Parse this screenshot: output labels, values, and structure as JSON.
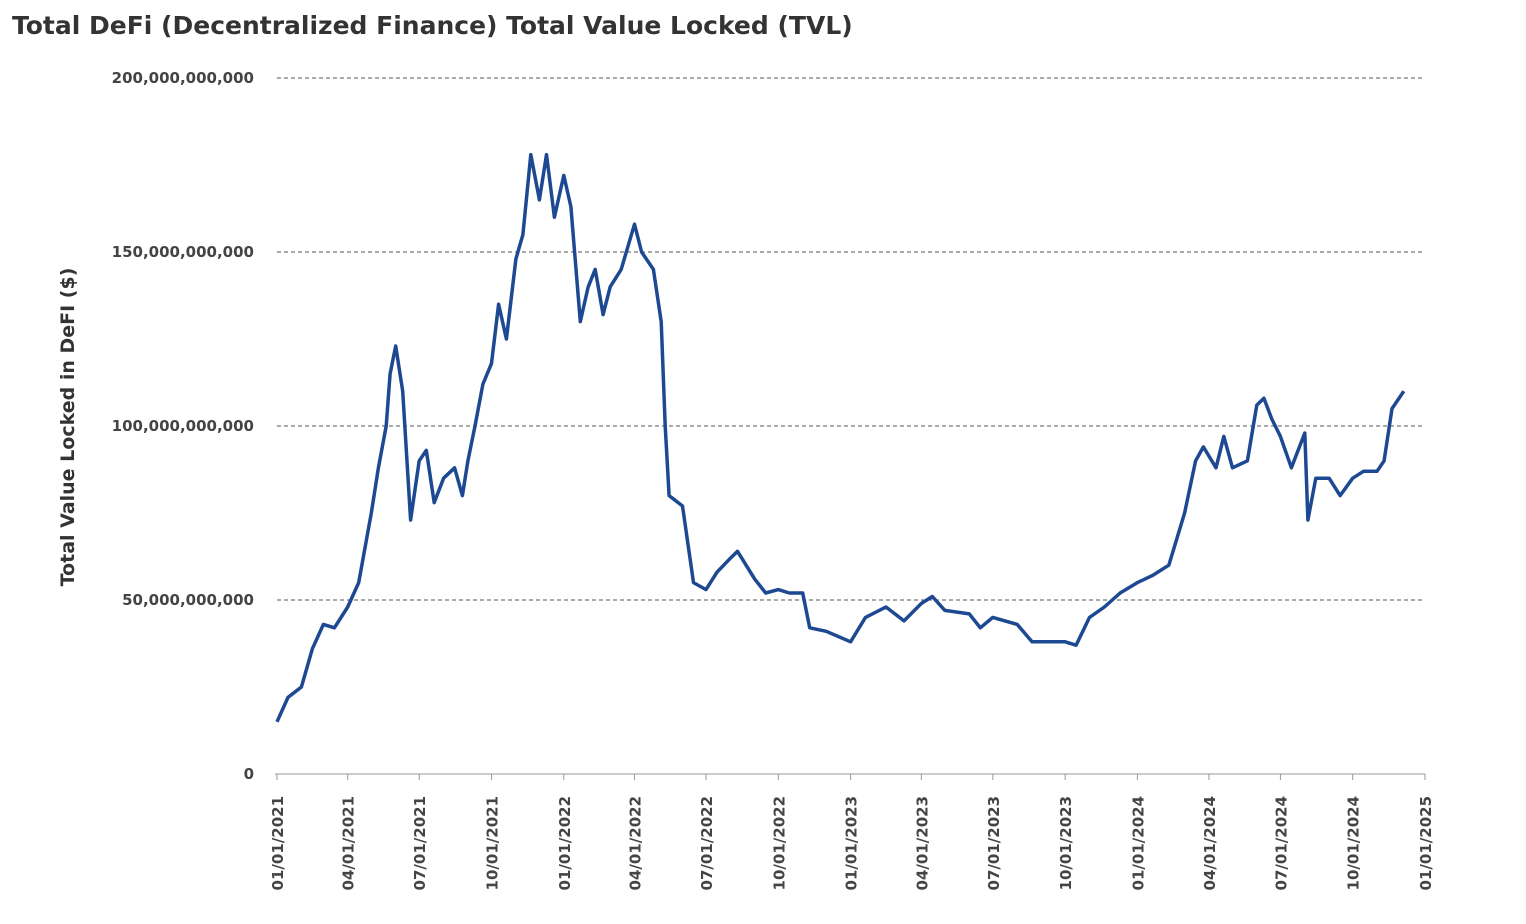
{
  "chart_data": {
    "type": "line",
    "title": "Total DeFi (Decentralized Finance) Total Value Locked (TVL)",
    "y_label": "Total Value Locked in DeFI ($)",
    "x": [
      "2021-01-01",
      "2021-01-15",
      "2021-02-01",
      "2021-02-15",
      "2021-03-01",
      "2021-03-15",
      "2021-04-01",
      "2021-04-15",
      "2021-05-01",
      "2021-05-10",
      "2021-05-20",
      "2021-05-25",
      "2021-06-01",
      "2021-06-10",
      "2021-06-20",
      "2021-07-01",
      "2021-07-10",
      "2021-07-20",
      "2021-08-01",
      "2021-08-15",
      "2021-08-25",
      "2021-09-01",
      "2021-09-10",
      "2021-09-20",
      "2021-10-01",
      "2021-10-10",
      "2021-10-20",
      "2021-11-01",
      "2021-11-10",
      "2021-11-20",
      "2021-12-01",
      "2021-12-10",
      "2021-12-20",
      "2022-01-01",
      "2022-01-10",
      "2022-01-22",
      "2022-02-01",
      "2022-02-10",
      "2022-02-20",
      "2022-03-01",
      "2022-03-15",
      "2022-04-01",
      "2022-04-10",
      "2022-04-25",
      "2022-05-05",
      "2022-05-10",
      "2022-05-15",
      "2022-06-01",
      "2022-06-15",
      "2022-07-01",
      "2022-07-15",
      "2022-08-01",
      "2022-08-10",
      "2022-09-01",
      "2022-09-15",
      "2022-10-01",
      "2022-10-15",
      "2022-11-01",
      "2022-11-10",
      "2022-12-01",
      "2023-01-01",
      "2023-01-20",
      "2023-02-15",
      "2023-03-10",
      "2023-04-01",
      "2023-04-15",
      "2023-05-01",
      "2023-06-01",
      "2023-06-15",
      "2023-07-01",
      "2023-08-01",
      "2023-08-20",
      "2023-09-15",
      "2023-10-01",
      "2023-10-15",
      "2023-11-01",
      "2023-11-20",
      "2023-12-10",
      "2024-01-01",
      "2024-01-20",
      "2024-02-10",
      "2024-03-01",
      "2024-03-15",
      "2024-03-25",
      "2024-04-10",
      "2024-04-20",
      "2024-05-01",
      "2024-05-20",
      "2024-06-01",
      "2024-06-10",
      "2024-06-20",
      "2024-07-01",
      "2024-07-15",
      "2024-08-01",
      "2024-08-05",
      "2024-08-15",
      "2024-09-01",
      "2024-09-15",
      "2024-10-01",
      "2024-10-15",
      "2024-11-01",
      "2024-11-10",
      "2024-11-20",
      "2024-12-05"
    ],
    "series": [
      {
        "name": "Total Value Locked",
        "color": "#1d4892",
        "values": [
          15000000000,
          22000000000,
          25000000000,
          36000000000,
          43000000000,
          42000000000,
          48000000000,
          55000000000,
          75000000000,
          88000000000,
          100000000000,
          115000000000,
          123000000000,
          110000000000,
          73000000000,
          90000000000,
          93000000000,
          78000000000,
          85000000000,
          88000000000,
          80000000000,
          90000000000,
          100000000000,
          112000000000,
          118000000000,
          135000000000,
          125000000000,
          148000000000,
          155000000000,
          178000000000,
          165000000000,
          178000000000,
          160000000000,
          172000000000,
          163000000000,
          130000000000,
          140000000000,
          145000000000,
          132000000000,
          140000000000,
          145000000000,
          158000000000,
          150000000000,
          145000000000,
          130000000000,
          100000000000,
          80000000000,
          77000000000,
          55000000000,
          53000000000,
          58000000000,
          62000000000,
          64000000000,
          56000000000,
          52000000000,
          53000000000,
          52000000000,
          52000000000,
          42000000000,
          41000000000,
          38000000000,
          45000000000,
          48000000000,
          44000000000,
          49000000000,
          51000000000,
          47000000000,
          46000000000,
          42000000000,
          45000000000,
          43000000000,
          38000000000,
          38000000000,
          38000000000,
          37000000000,
          45000000000,
          48000000000,
          52000000000,
          55000000000,
          57000000000,
          60000000000,
          75000000000,
          90000000000,
          94000000000,
          88000000000,
          97000000000,
          88000000000,
          90000000000,
          106000000000,
          108000000000,
          102000000000,
          97000000000,
          88000000000,
          98000000000,
          73000000000,
          85000000000,
          85000000000,
          80000000000,
          85000000000,
          87000000000,
          87000000000,
          90000000000,
          105000000000,
          110000000000
        ]
      }
    ],
    "ylim": [
      0,
      200000000000
    ],
    "yticks": [
      0,
      {
        "value": 50000000000,
        "label": "50,000,000,000"
      },
      {
        "value": 100000000000,
        "label": "100,000,000,000"
      },
      {
        "value": 150000000000,
        "label": "150,000,000,000"
      },
      {
        "value": 200000000000,
        "label": "200,000,000,000"
      }
    ],
    "xlim": [
      "2021-01-01",
      "2025-01-01"
    ],
    "xticks": [
      {
        "value": "2021-01-01",
        "label": "01/01/2021"
      },
      {
        "value": "2021-04-01",
        "label": "04/01/2021"
      },
      {
        "value": "2021-07-01",
        "label": "07/01/2021"
      },
      {
        "value": "2021-10-01",
        "label": "10/01/2021"
      },
      {
        "value": "2022-01-01",
        "label": "01/01/2022"
      },
      {
        "value": "2022-04-01",
        "label": "04/01/2022"
      },
      {
        "value": "2022-07-01",
        "label": "07/01/2022"
      },
      {
        "value": "2022-10-01",
        "label": "10/01/2022"
      },
      {
        "value": "2023-01-01",
        "label": "01/01/2023"
      },
      {
        "value": "2023-04-01",
        "label": "04/01/2023"
      },
      {
        "value": "2023-07-01",
        "label": "07/01/2023"
      },
      {
        "value": "2023-10-01",
        "label": "10/01/2023"
      },
      {
        "value": "2024-01-01",
        "label": "01/01/2024"
      },
      {
        "value": "2024-04-01",
        "label": "04/01/2024"
      },
      {
        "value": "2024-07-01",
        "label": "07/01/2024"
      },
      {
        "value": "2024-10-01",
        "label": "10/01/2024"
      },
      {
        "value": "2025-01-01",
        "label": "01/01/2025"
      }
    ],
    "grid": true
  }
}
